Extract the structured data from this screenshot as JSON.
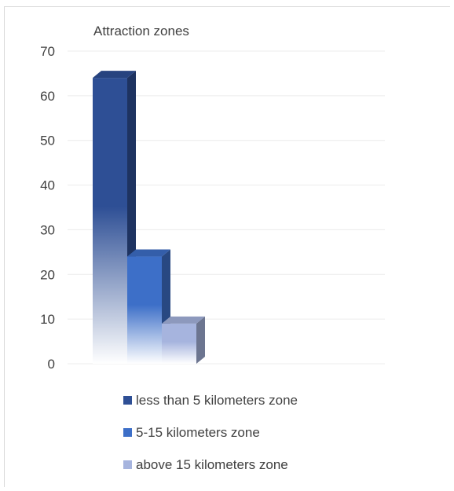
{
  "chart_data": {
    "type": "bar",
    "title": "Attraction zones",
    "xlabel": "",
    "ylabel": "",
    "ylim": [
      0,
      70
    ],
    "yticks": [
      0,
      10,
      20,
      30,
      40,
      50,
      60,
      70
    ],
    "grid": true,
    "legend_position": "bottom",
    "categories": [
      ""
    ],
    "series": [
      {
        "name": "less than 5 kilometers zone",
        "values": [
          64
        ],
        "color": "#2e4f95"
      },
      {
        "name": "5-15 kilometers zone",
        "values": [
          24
        ],
        "color": "#3d6fc8"
      },
      {
        "name": "above 15 kilometers zone",
        "values": [
          9
        ],
        "color": "#a6b4de"
      }
    ]
  }
}
